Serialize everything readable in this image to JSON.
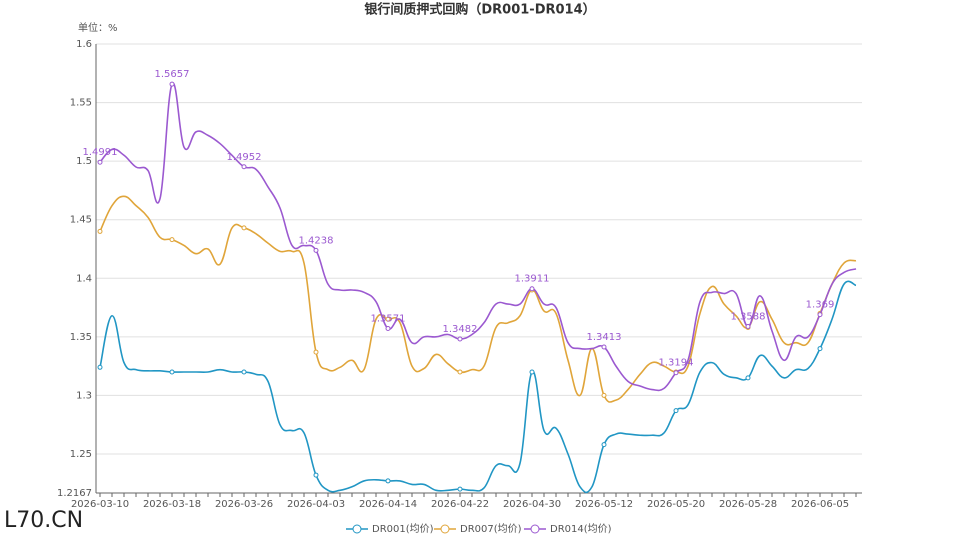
{
  "chart_data": {
    "type": "line",
    "title": "银行间质押式回购（DR001-DR014）",
    "y_label": "单位：%",
    "watermark": "L70.CN",
    "categories": [
      "2026-03-10",
      null,
      null,
      null,
      null,
      null,
      "2026-03-18",
      null,
      null,
      null,
      null,
      null,
      "2026-03-26",
      null,
      null,
      null,
      null,
      null,
      "2026-04-03",
      null,
      null,
      null,
      null,
      null,
      "2026-04-14",
      null,
      null,
      null,
      null,
      null,
      "2026-04-22",
      null,
      null,
      null,
      null,
      null,
      "2026-04-30",
      null,
      null,
      null,
      null,
      null,
      "2026-05-12",
      null,
      null,
      null,
      null,
      null,
      "2026-05-20",
      null,
      null,
      null,
      null,
      null,
      "2026-05-28",
      null,
      null,
      null,
      null,
      null,
      "2026-06-05",
      null,
      null,
      null
    ],
    "ylim": [
      1.2167,
      1.6
    ],
    "yticks": [
      1.2167,
      1.25,
      1.3,
      1.35,
      1.4,
      1.45,
      1.5,
      1.55,
      1.6
    ],
    "grid": true,
    "legend": "bottom",
    "series": [
      {
        "name": "DR001(均价)",
        "color": "#2196c4",
        "values": [
          1.324,
          1.368,
          1.328,
          1.322,
          1.321,
          1.321,
          1.32,
          1.32,
          1.32,
          1.32,
          1.322,
          1.32,
          1.32,
          1.318,
          1.312,
          1.275,
          1.27,
          1.268,
          1.232,
          1.219,
          1.219,
          1.222,
          1.227,
          1.228,
          1.227,
          1.227,
          1.224,
          1.224,
          1.219,
          1.219,
          1.22,
          1.219,
          1.221,
          1.24,
          1.24,
          1.242,
          1.32,
          1.27,
          1.272,
          1.25,
          1.222,
          1.222,
          1.258,
          1.267,
          1.267,
          1.266,
          1.266,
          1.268,
          1.287,
          1.292,
          1.32,
          1.328,
          1.318,
          1.315,
          1.315,
          1.334,
          1.325,
          1.315,
          1.322,
          1.323,
          1.34,
          1.365,
          1.395,
          1.394
        ]
      },
      {
        "name": "DR007(均价)",
        "color": "#e0a53a",
        "values": [
          1.44,
          1.462,
          1.47,
          1.462,
          1.452,
          1.435,
          1.433,
          1.428,
          1.421,
          1.425,
          1.412,
          1.443,
          1.443,
          1.438,
          1.43,
          1.423,
          1.423,
          1.413,
          1.337,
          1.322,
          1.324,
          1.33,
          1.322,
          1.365,
          1.365,
          1.362,
          1.325,
          1.323,
          1.335,
          1.327,
          1.32,
          1.322,
          1.325,
          1.358,
          1.362,
          1.368,
          1.39,
          1.372,
          1.37,
          1.33,
          1.3,
          1.34,
          1.3,
          1.296,
          1.305,
          1.318,
          1.328,
          1.325,
          1.32,
          1.325,
          1.37,
          1.393,
          1.378,
          1.368,
          1.358,
          1.38,
          1.365,
          1.345,
          1.345,
          1.345,
          1.37,
          1.395,
          1.413,
          1.415
        ]
      },
      {
        "name": "DR014(均价)",
        "color": "#9b59d0",
        "labels": true,
        "values": [
          1.4991,
          1.51,
          1.505,
          1.495,
          1.492,
          1.468,
          1.5657,
          1.512,
          1.525,
          1.522,
          1.515,
          1.505,
          1.4952,
          1.493,
          1.478,
          1.46,
          1.428,
          1.428,
          1.4238,
          1.395,
          1.39,
          1.39,
          1.388,
          1.38,
          1.3571,
          1.365,
          1.345,
          1.35,
          1.35,
          1.352,
          1.3482,
          1.352,
          1.362,
          1.378,
          1.378,
          1.378,
          1.3911,
          1.378,
          1.375,
          1.345,
          1.34,
          1.34,
          1.3413,
          1.325,
          1.312,
          1.308,
          1.305,
          1.306,
          1.3194,
          1.33,
          1.38,
          1.388,
          1.387,
          1.387,
          1.3588,
          1.385,
          1.355,
          1.33,
          1.35,
          1.35,
          1.369,
          1.395,
          1.405,
          1.408
        ]
      }
    ]
  }
}
